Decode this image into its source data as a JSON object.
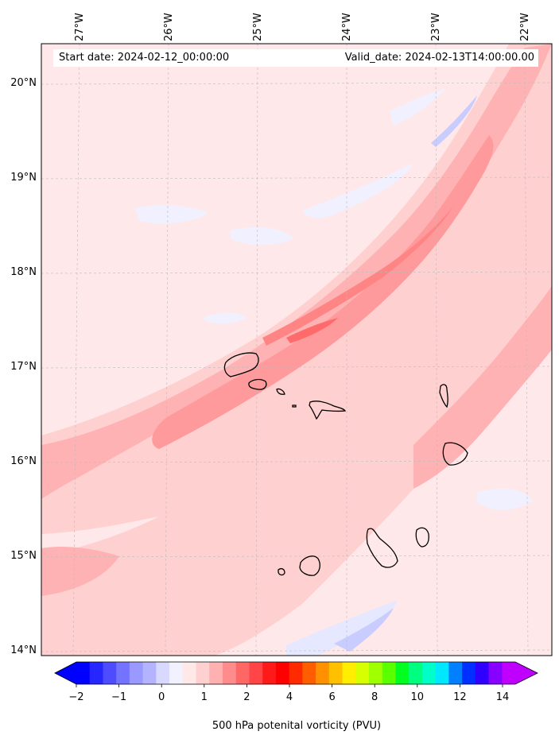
{
  "map": {
    "type": "contour_map",
    "region": "Cape Verde Islands",
    "header": {
      "start_date": "Start date: 2024-02-12_00:00:00",
      "valid_date": "Valid_date: 2024-02-13T14:00:00.00"
    },
    "longitude_labels": [
      "27°W",
      "26°W",
      "25°W",
      "24°W",
      "23°W",
      "22°W"
    ],
    "latitude_labels": [
      "20°N",
      "19°N",
      "18°N",
      "17°N",
      "16°N",
      "15°N",
      "14°N"
    ],
    "gridlines": "dashed grey"
  },
  "colorbar": {
    "label": "500 hPa potenital vorticity (PVU)",
    "ticks": [
      "−2",
      "−1",
      "0",
      "1",
      "2",
      "4",
      "6",
      "8",
      "10",
      "12",
      "14"
    ],
    "extend": "both",
    "colors": [
      "#0000ff",
      "#2626ff",
      "#4d4dff",
      "#7373ff",
      "#9999ff",
      "#b3b3ff",
      "#d9d9ff",
      "#f2f2ff",
      "#ffe8e8",
      "#ffd0d0",
      "#ffb0b0",
      "#ff8c8c",
      "#ff6666",
      "#ff4545",
      "#ff1a1a",
      "#ff0000",
      "#ff2a00",
      "#ff5e00",
      "#ff9000",
      "#ffc000",
      "#ffee00",
      "#d8ff00",
      "#a0ff00",
      "#5aff00",
      "#00ff20",
      "#00ff80",
      "#00ffc8",
      "#00e8ff",
      "#0080ff",
      "#0030ff",
      "#3000ff",
      "#8800ff",
      "#c000ff"
    ]
  }
}
